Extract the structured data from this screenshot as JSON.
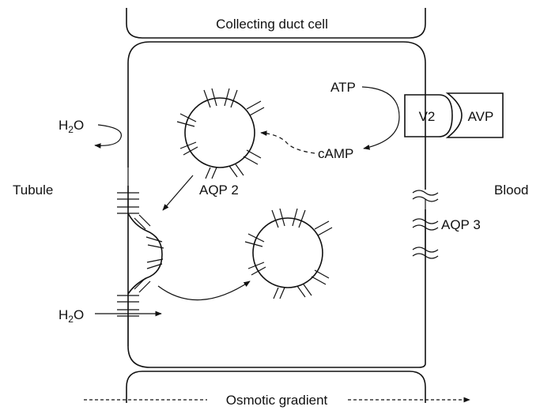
{
  "labels": {
    "cell_title": "Collecting duct cell",
    "tubule": "Tubule",
    "blood": "Blood",
    "h2o_top_main": "H",
    "h2o_top_sub": "2",
    "h2o_top_tail": "O",
    "h2o_bottom_main": "H",
    "h2o_bottom_sub": "2",
    "h2o_bottom_tail": "O",
    "atp": "ATP",
    "camp": "cAMP",
    "v2": "V2",
    "avp": "AVP",
    "aqp2": "AQP 2",
    "aqp3": "AQP 3",
    "osmotic_gradient": "Osmotic gradient"
  }
}
